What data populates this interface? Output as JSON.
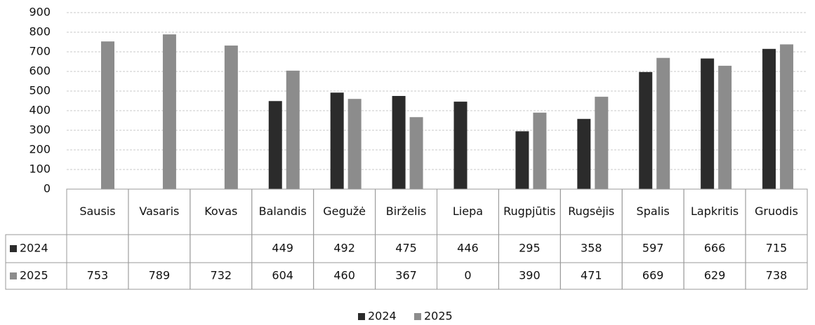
{
  "chart_data": {
    "type": "bar",
    "categories": [
      "Sausis",
      "Vasaris",
      "Kovas",
      "Balandis",
      "Gegužė",
      "Birželis",
      "Liepa",
      "Rugpjūtis",
      "Rugsėjis",
      "Spalis",
      "Lapkritis",
      "Gruodis"
    ],
    "series": [
      {
        "name": "2024",
        "color": "#2b2b2b",
        "values": [
          null,
          null,
          null,
          449,
          492,
          475,
          446,
          295,
          358,
          597,
          666,
          715
        ]
      },
      {
        "name": "2025",
        "color": "#8c8c8c",
        "values": [
          753,
          789,
          732,
          604,
          460,
          367,
          0,
          390,
          471,
          669,
          629,
          738
        ]
      }
    ],
    "ylim": [
      0,
      900
    ],
    "yticks": [
      0,
      100,
      200,
      300,
      400,
      500,
      600,
      700,
      800,
      900
    ],
    "grid": true,
    "legend": "bottom",
    "data_table": true
  }
}
